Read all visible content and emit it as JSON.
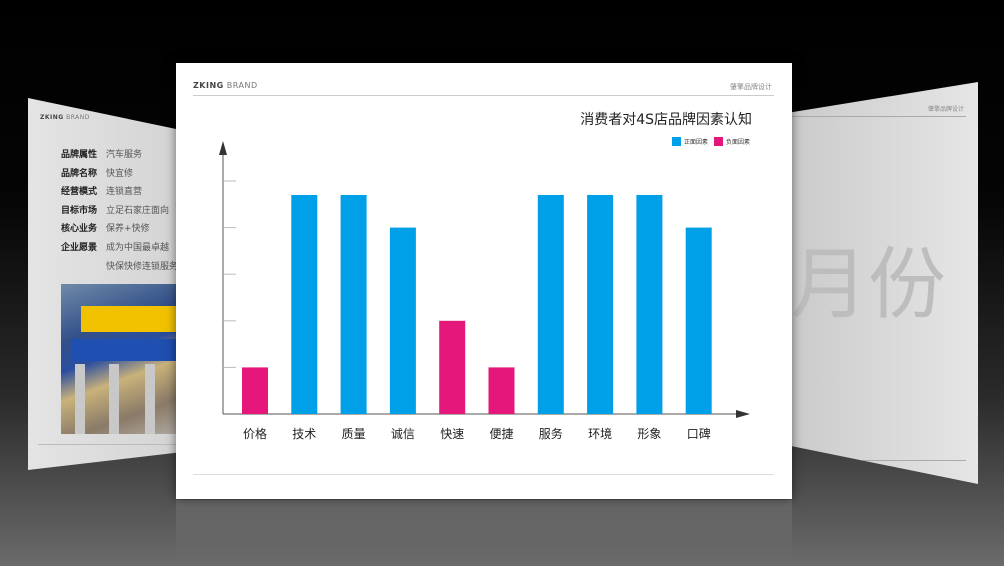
{
  "left_slide": {
    "brand_bold": "ZKING",
    "brand_light": "BRAND",
    "fields": [
      {
        "label": "品牌属性",
        "value": "汽车服务"
      },
      {
        "label": "品牌名称",
        "value": "快宜修"
      },
      {
        "label": "经营模式",
        "value": "连锁直营"
      },
      {
        "label": "目标市场",
        "value": "立足石家庄面向"
      },
      {
        "label": "核心业务",
        "value": "保养+快修"
      },
      {
        "label": "企业愿景",
        "value": "成为中国最卓越"
      }
    ],
    "extra_line": "快保快修连锁服务"
  },
  "right_slide": {
    "header": "肇擎品牌设计",
    "glyph": "月份"
  },
  "main_slide": {
    "brand_bold": "ZKING",
    "brand_light": "BRAND",
    "header_right": "肇擎品牌设计",
    "chart_data": {
      "type": "bar",
      "title": "消费者对4S店品牌因素认知",
      "categories": [
        "价格",
        "技术",
        "质量",
        "诚信",
        "快速",
        "便捷",
        "服务",
        "环境",
        "形象",
        "口碑"
      ],
      "values": [
        1,
        4.7,
        4.7,
        4,
        2,
        1,
        4.7,
        4.7,
        4.7,
        4
      ],
      "groups": [
        "负面因素",
        "正面因素",
        "正面因素",
        "正面因素",
        "负面因素",
        "负面因素",
        "正面因素",
        "正面因素",
        "正面因素",
        "正面因素"
      ],
      "ylim": [
        0,
        5.5
      ],
      "y_ticks": [
        1,
        2,
        3,
        4,
        5
      ],
      "legend": [
        {
          "name": "正面因素",
          "color": "#00a0e9"
        },
        {
          "name": "负面因素",
          "color": "#e5177b"
        }
      ],
      "legend_position": "top-right",
      "grid": false
    }
  }
}
